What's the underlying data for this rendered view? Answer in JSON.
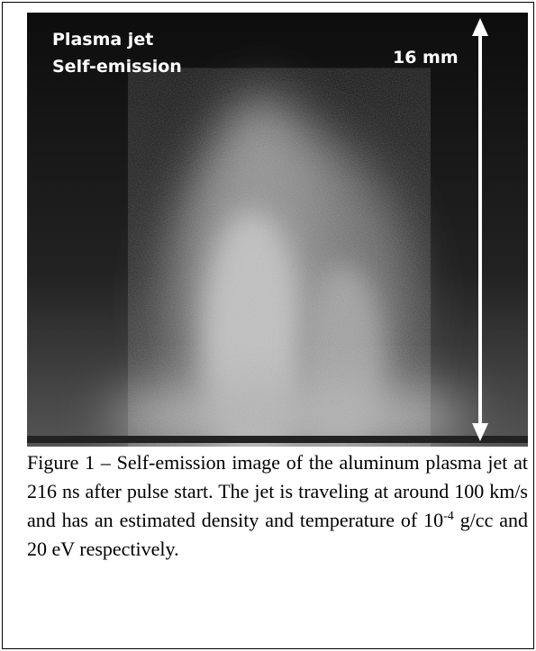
{
  "figure": {
    "labels": [
      "Plasma jet",
      "Self-emission"
    ],
    "scale_label": "16 mm",
    "caption": {
      "text": "Figure 1 – Self-emission image of the aluminum plasma jet at 216 ns after pulse start. The jet is traveling at around 100 km/s and has an estimated density and temperature of 10",
      "superscript": "-4",
      "tail": " g/cc and 20 eV respectively."
    }
  }
}
